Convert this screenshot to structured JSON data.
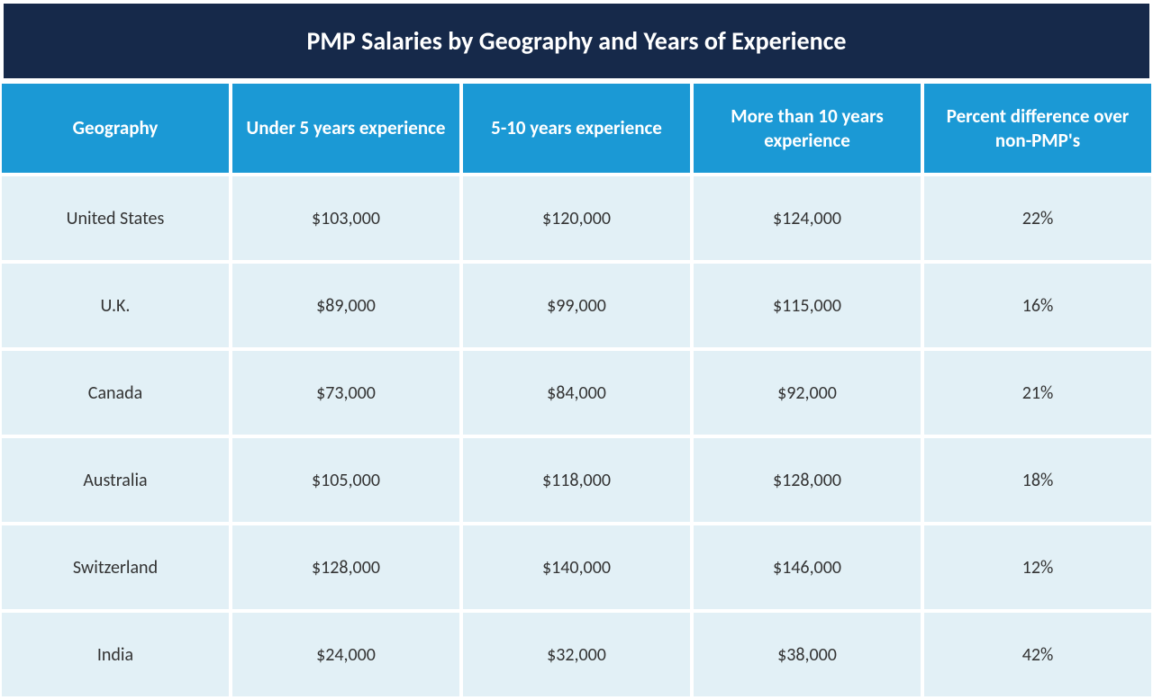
{
  "table": {
    "type": "table",
    "title": "PMP Salaries by Geography and Years of Experience",
    "title_bg_color": "#16294a",
    "title_text_color": "#ffffff",
    "title_fontsize": 28,
    "header_bg_color": "#1b99d5",
    "header_text_color": "#ffffff",
    "header_fontsize": 21,
    "data_bg_color": "#e2f0f6",
    "data_text_color": "#333333",
    "data_fontsize": 20,
    "border_color": "#ffffff",
    "columns": [
      "Geography",
      "Under 5 years experience",
      "5-10 years experience",
      "More than 10 years experience",
      "Percent difference over non-PMP's"
    ],
    "rows": [
      [
        "United States",
        "$103,000",
        "$120,000",
        "$124,000",
        "22%"
      ],
      [
        "U.K.",
        "$89,000",
        "$99,000",
        "$115,000",
        "16%"
      ],
      [
        "Canada",
        "$73,000",
        "$84,000",
        "$92,000",
        "21%"
      ],
      [
        "Australia",
        "$105,000",
        "$118,000",
        "$128,000",
        "18%"
      ],
      [
        "Switzerland",
        "$128,000",
        "$140,000",
        "$146,000",
        "12%"
      ],
      [
        "India",
        "$24,000",
        "$32,000",
        "$38,000",
        "42%"
      ]
    ]
  }
}
